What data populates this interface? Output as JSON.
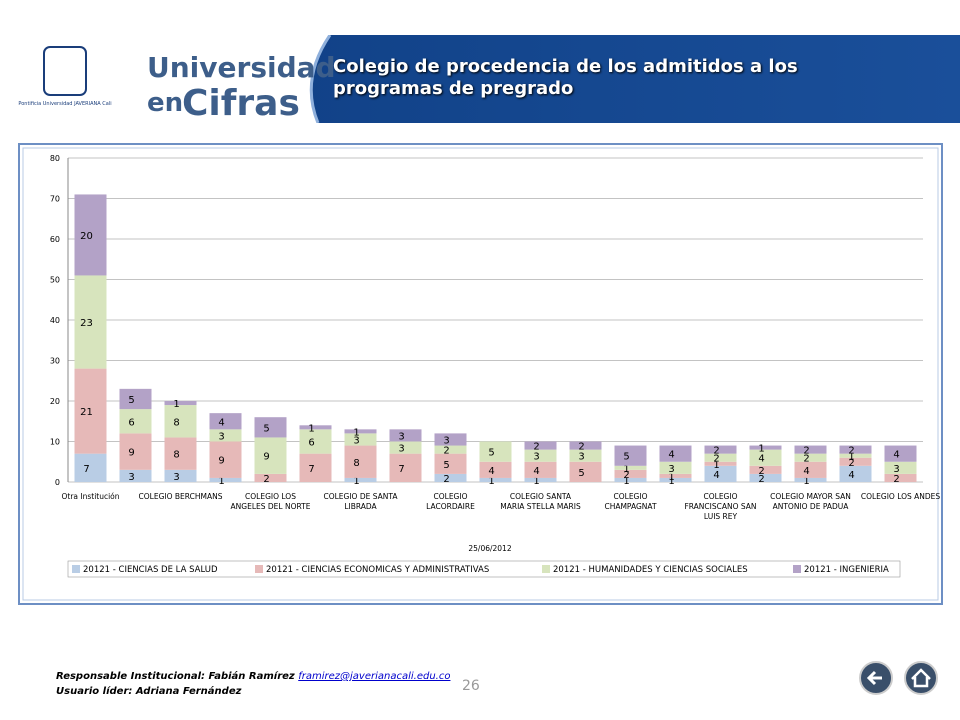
{
  "header": {
    "crest": "Pontificia Universidad JAVERIANA Cali",
    "logo_line1": "Universidad",
    "logo_line2": "en",
    "logo_line3": "Cifras",
    "title": "Colegio de procedencia de los admitidos a los programas de pregrado"
  },
  "chart_data": {
    "type": "stacked_bar",
    "x_label": "25/06/2012",
    "categories": [
      "Otra Institución",
      null,
      "COLEGIO BERCHMANS",
      null,
      "COLEGIO LOS ANGELES DEL NORTE",
      null,
      "COLEGIO DE SANTA LIBRADA",
      null,
      "COLEGIO LACORDAIRE",
      null,
      "COLEGIO SANTA MARIA STELLA MARIS",
      null,
      "COLEGIO CHAMPAGNAT",
      null,
      "COLEGIO FRANCISCANO SAN LUIS REY",
      null,
      "COLEGIO MAYOR SAN ANTONIO DE PADUA",
      null,
      "COLEGIO LOS ANDES"
    ],
    "series": [
      {
        "name": "20121 - CIENCIAS DE LA SALUD",
        "color": "#b9cde5",
        "values": [
          7,
          3,
          3,
          1,
          0,
          0,
          1,
          0,
          2,
          1,
          1,
          0,
          1,
          1,
          4,
          2,
          1,
          4,
          0
        ]
      },
      {
        "name": "20121 - CIENCIAS ECONOMICAS Y ADMINISTRATIVAS",
        "color": "#e6b9b8",
        "values": [
          21,
          9,
          8,
          9,
          2,
          7,
          8,
          7,
          5,
          4,
          4,
          5,
          2,
          1,
          1,
          2,
          4,
          2,
          2
        ]
      },
      {
        "name": "20121 - HUMANIDADES Y CIENCIAS SOCIALES",
        "color": "#d7e4bd",
        "values": [
          23,
          6,
          8,
          3,
          9,
          6,
          3,
          3,
          2,
          5,
          3,
          3,
          1,
          3,
          2,
          4,
          2,
          1,
          3
        ]
      },
      {
        "name": "20121 - INGENIERIA",
        "color": "#b3a2c7",
        "values": [
          20,
          5,
          1,
          4,
          5,
          1,
          1,
          3,
          3,
          0,
          2,
          2,
          5,
          4,
          2,
          1,
          2,
          2,
          4
        ]
      }
    ],
    "ylim": [
      0,
      80
    ],
    "yticks": [
      0,
      10,
      20,
      30,
      40,
      50,
      60,
      70,
      80
    ],
    "legend": "bottom"
  },
  "footer": {
    "responsable": "Responsable Institucional: Fabián Ramírez",
    "email": "framirez@javerianacali.edu.co",
    "usuario": "Usuario líder: Adriana Fernández",
    "page": "26"
  }
}
